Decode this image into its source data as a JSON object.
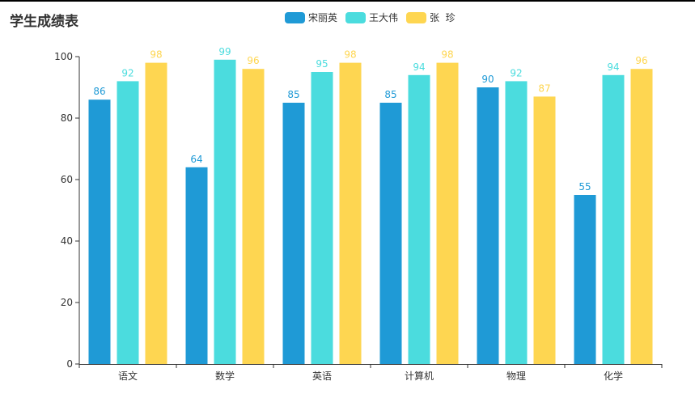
{
  "chart_data": {
    "type": "bar",
    "title": "学生成绩表",
    "categories": [
      "语文",
      "数学",
      "英语",
      "计算机",
      "物理",
      "化学"
    ],
    "series": [
      {
        "name": "宋丽英",
        "color": "#1f9ad6",
        "values": [
          86,
          64,
          85,
          85,
          90,
          55
        ]
      },
      {
        "name": "王大伟",
        "color": "#4bdcde",
        "values": [
          92,
          99,
          95,
          94,
          92,
          94
        ]
      },
      {
        "name": "张  珍",
        "color": "#fed651",
        "values": [
          98,
          96,
          98,
          98,
          87,
          96
        ]
      }
    ],
    "ylim": [
      0,
      100
    ],
    "yticks": [
      0,
      20,
      40,
      60,
      80,
      100
    ],
    "xlabel": "",
    "ylabel": "",
    "grid": false,
    "legend_position": "top-center",
    "data_labels": true
  }
}
